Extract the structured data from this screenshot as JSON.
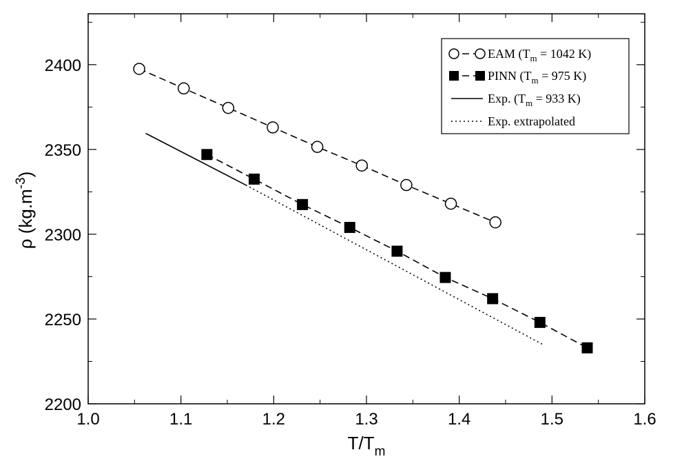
{
  "chart_data": {
    "type": "line",
    "xlabel": {
      "base": "T/T",
      "sub": "m"
    },
    "ylabel": {
      "base": "ρ (kg.m",
      "sup": "-3",
      "close": ")"
    },
    "xlim": [
      1.0,
      1.6
    ],
    "ylim": [
      2200,
      2430
    ],
    "xticks": [
      "1.0",
      "1.1",
      "1.2",
      "1.3",
      "1.4",
      "1.5",
      "1.6"
    ],
    "yticks": [
      "2200",
      "2250",
      "2300",
      "2350",
      "2400"
    ],
    "legend_position": "top-right",
    "series": [
      {
        "name_parts": [
          "EAM  (T",
          "m",
          " = 1042 K)"
        ],
        "marker": "circle-open",
        "line": "dashed",
        "x": [
          1.055,
          1.103,
          1.151,
          1.199,
          1.247,
          1.295,
          1.343,
          1.391,
          1.439
        ],
        "y": [
          2397.5,
          2386,
          2374.5,
          2363,
          2351.5,
          2340.5,
          2329,
          2318,
          2307
        ]
      },
      {
        "name_parts": [
          "PINN  (T",
          "m",
          " = 975 K)"
        ],
        "marker": "square-filled",
        "line": "dashed",
        "x": [
          1.128,
          1.179,
          1.231,
          1.282,
          1.333,
          1.385,
          1.436,
          1.487,
          1.538
        ],
        "y": [
          2347,
          2332.5,
          2317.5,
          2304,
          2290,
          2274.5,
          2262,
          2248,
          2233
        ]
      },
      {
        "name_parts": [
          "Exp.    (T",
          "m",
          " = 933 K)"
        ],
        "marker": "none",
        "line": "solid",
        "x": [
          1.062,
          1.17
        ],
        "y": [
          2359.5,
          2329
        ]
      },
      {
        "name_parts": [
          "Exp. extrapolated",
          "",
          ""
        ],
        "marker": "none",
        "line": "dotted",
        "x": [
          1.17,
          1.49
        ],
        "y": [
          2329,
          2235
        ]
      }
    ]
  }
}
